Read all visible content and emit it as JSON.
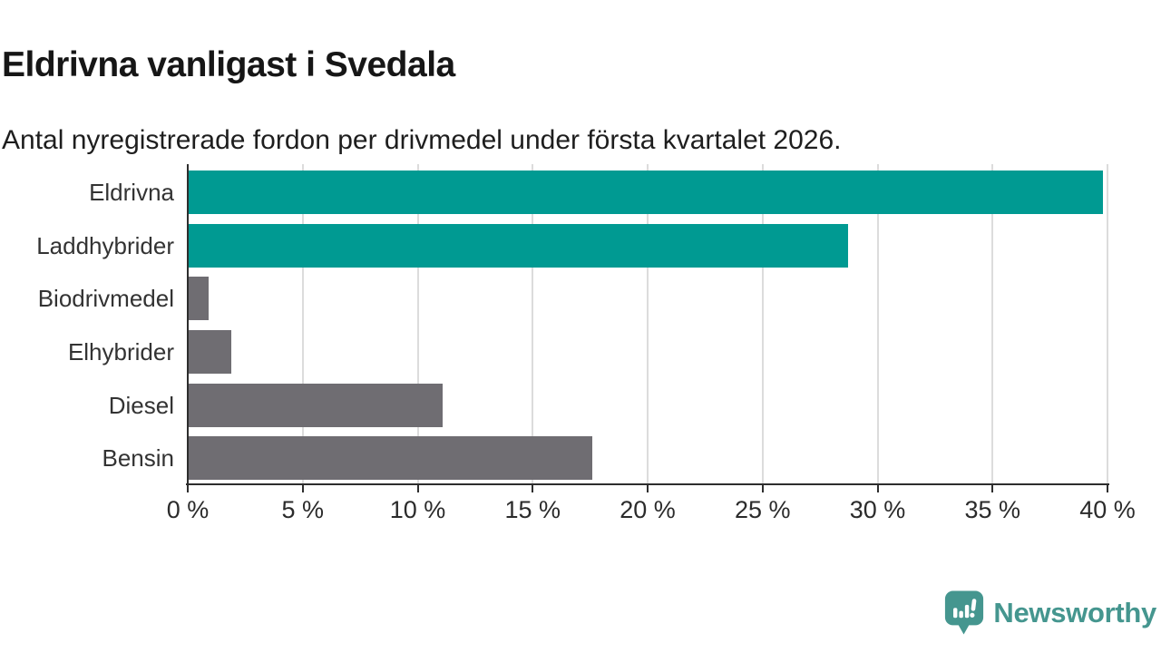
{
  "header": {
    "title": "Eldrivna vanligast i Svedala",
    "subtitle": "Antal nyregistrerade fordon per drivmedel under första kvartalet 2026."
  },
  "chart_data": {
    "type": "bar",
    "orientation": "horizontal",
    "title": "Eldrivna vanligast i Svedala",
    "subtitle": "Antal nyregistrerade fordon per drivmedel under första kvartalet 2026.",
    "categories": [
      "Eldrivna",
      "Laddhybrider",
      "Biodrivmedel",
      "Elhybrider",
      "Diesel",
      "Bensin"
    ],
    "values": [
      39.8,
      28.7,
      0.9,
      1.9,
      11.1,
      17.6
    ],
    "unit": "%",
    "bar_colors": [
      "#009a92",
      "#009a92",
      "#6f6d72",
      "#6f6d72",
      "#6f6d72",
      "#6f6d72"
    ],
    "xlim": [
      0,
      40
    ],
    "x_ticks": [
      0,
      5,
      10,
      15,
      20,
      25,
      30,
      35,
      40
    ],
    "x_tick_labels": [
      "0 %",
      "5 %",
      "10 %",
      "15 %",
      "20 %",
      "25 %",
      "30 %",
      "35 %",
      "40 %"
    ],
    "grid": true,
    "legend": false
  },
  "colors": {
    "accent_teal": "#009a92",
    "neutral_gray": "#6f6d72",
    "axis": "#2e2e2e",
    "gridline": "#dcdcdc",
    "logo_teal": "#45968f"
  },
  "footer": {
    "logo_text": "Newsworthy",
    "logo_icon": "bar-chart-speech-bubble"
  }
}
